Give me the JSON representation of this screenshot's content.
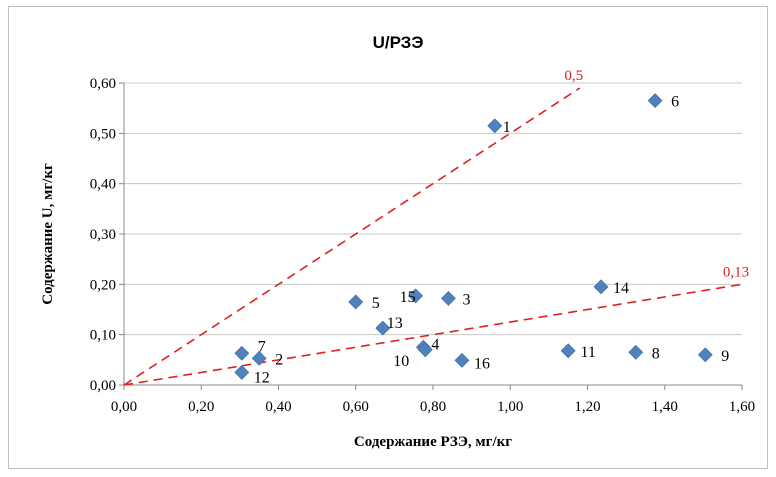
{
  "chart_data": {
    "type": "scatter",
    "title": "U/РЗЭ",
    "xlabel": "Содержание РЗЭ, мг/кг",
    "ylabel": "Содержание U, мг/кг",
    "xlim": [
      0,
      1.6
    ],
    "ylim": [
      0,
      0.6
    ],
    "xticks": [
      "0,00",
      "0,20",
      "0,40",
      "0,60",
      "0,80",
      "1,00",
      "1,20",
      "1,40",
      "1,60"
    ],
    "yticks": [
      "0,00",
      "0,10",
      "0,20",
      "0,30",
      "0,40",
      "0,50",
      "0,60"
    ],
    "grid": "horizontal",
    "marker_color": "#4f81bd",
    "reference_line_color": "#e02020",
    "points": [
      {
        "label": "1",
        "x": 0.96,
        "y": 0.515
      },
      {
        "label": "2",
        "x": 0.35,
        "y": 0.053
      },
      {
        "label": "3",
        "x": 0.84,
        "y": 0.172
      },
      {
        "label": "4",
        "x": 0.775,
        "y": 0.075
      },
      {
        "label": "5",
        "x": 0.6,
        "y": 0.165
      },
      {
        "label": "6",
        "x": 1.375,
        "y": 0.565
      },
      {
        "label": "7",
        "x": 0.305,
        "y": 0.063
      },
      {
        "label": "8",
        "x": 1.325,
        "y": 0.065
      },
      {
        "label": "9",
        "x": 1.505,
        "y": 0.06
      },
      {
        "label": "10",
        "x": 0.78,
        "y": 0.07
      },
      {
        "label": "11",
        "x": 1.15,
        "y": 0.068
      },
      {
        "label": "12",
        "x": 0.305,
        "y": 0.025
      },
      {
        "label": "13",
        "x": 0.67,
        "y": 0.113
      },
      {
        "label": "14",
        "x": 1.235,
        "y": 0.195
      },
      {
        "label": "15",
        "x": 0.755,
        "y": 0.177
      },
      {
        "label": "16",
        "x": 0.875,
        "y": 0.049
      }
    ],
    "reference_lines": [
      {
        "label": "0,5",
        "slope": 0.5,
        "x_end": 1.18
      },
      {
        "label": "0,13",
        "slope": 0.125,
        "x_end": 1.6
      }
    ]
  }
}
